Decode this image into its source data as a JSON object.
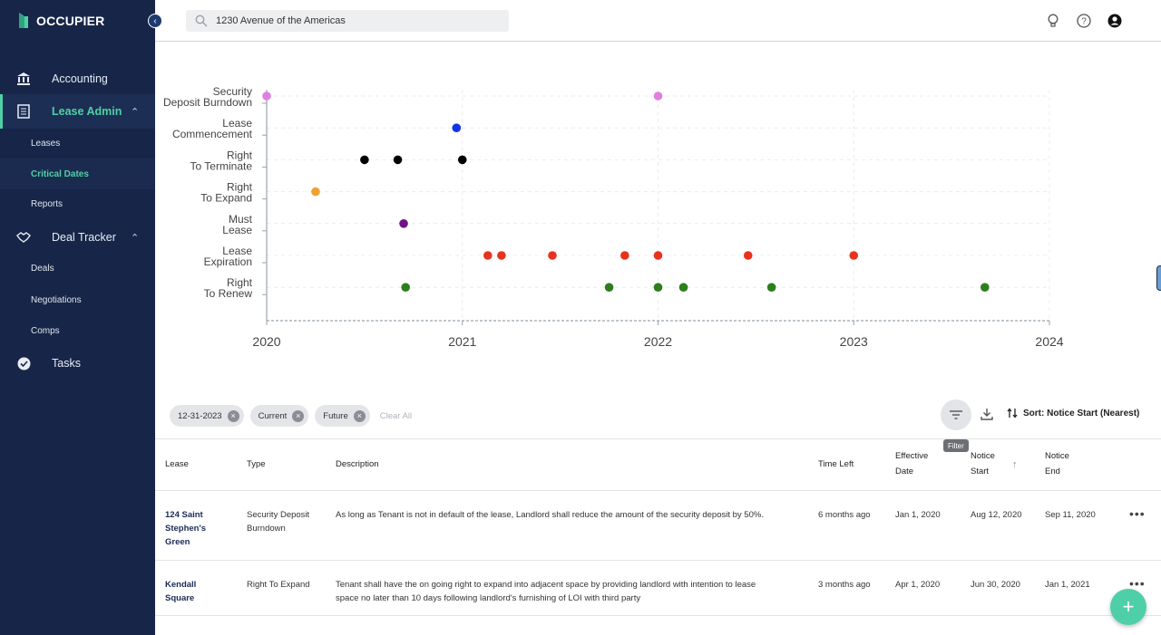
{
  "app": {
    "name": "OCCUPIER"
  },
  "sidebar": {
    "items": [
      {
        "label": "Accounting",
        "icon": "bank-icon"
      },
      {
        "label": "Lease Admin",
        "icon": "document-icon",
        "expanded": true
      },
      {
        "label": "Deal Tracker",
        "icon": "handshake-icon",
        "expanded": true
      },
      {
        "label": "Tasks",
        "icon": "check-circle-icon"
      }
    ],
    "lease_admin_sub": [
      "Leases",
      "Critical Dates",
      "Reports"
    ],
    "deal_tracker_sub": [
      "Deals",
      "Negotiations",
      "Comps"
    ],
    "active_sub": "Critical Dates"
  },
  "header": {
    "search_value": "1230 Avenue of the Americas",
    "icons": [
      "lightbulb-icon",
      "help-icon",
      "account-icon"
    ]
  },
  "chart_data": {
    "type": "scatter",
    "x_axis": {
      "ticks": [
        "2020",
        "2021",
        "2022",
        "2023",
        "2024"
      ],
      "range": [
        2020,
        2024
      ]
    },
    "categories": [
      {
        "label": [
          "Security",
          "Deposit Burndown"
        ],
        "color": "#e07fe0"
      },
      {
        "label": [
          "Lease",
          "Commencement"
        ],
        "color": "#1433e6"
      },
      {
        "label": [
          "Right",
          "To Terminate"
        ],
        "color": "#000000"
      },
      {
        "label": [
          "Right",
          "To Expand"
        ],
        "color": "#f0a030"
      },
      {
        "label": [
          "Must",
          "Lease"
        ],
        "color": "#6e1487"
      },
      {
        "label": [
          "Lease",
          "Expiration"
        ],
        "color": "#e8321e"
      },
      {
        "label": [
          "Right",
          "To Renew"
        ],
        "color": "#2e7d1e"
      }
    ],
    "points": [
      {
        "cat": 0,
        "x": 2020.0
      },
      {
        "cat": 0,
        "x": 2022.0
      },
      {
        "cat": 1,
        "x": 2020.97
      },
      {
        "cat": 2,
        "x": 2020.5
      },
      {
        "cat": 2,
        "x": 2020.67
      },
      {
        "cat": 2,
        "x": 2021.0
      },
      {
        "cat": 3,
        "x": 2020.25
      },
      {
        "cat": 4,
        "x": 2020.7
      },
      {
        "cat": 5,
        "x": 2021.13
      },
      {
        "cat": 5,
        "x": 2021.2
      },
      {
        "cat": 5,
        "x": 2021.46
      },
      {
        "cat": 5,
        "x": 2021.83
      },
      {
        "cat": 5,
        "x": 2022.0
      },
      {
        "cat": 5,
        "x": 2022.46
      },
      {
        "cat": 5,
        "x": 2023.0
      },
      {
        "cat": 6,
        "x": 2020.71
      },
      {
        "cat": 6,
        "x": 2021.75
      },
      {
        "cat": 6,
        "x": 2022.0
      },
      {
        "cat": 6,
        "x": 2022.13
      },
      {
        "cat": 6,
        "x": 2022.58
      },
      {
        "cat": 6,
        "x": 2023.67
      }
    ],
    "grid": true
  },
  "filters": {
    "chips": [
      "12-31-2023",
      "Current",
      "Future"
    ],
    "clear_all": "Clear All",
    "filter_tooltip": "Filter",
    "sort_label": "Sort: Notice Start (Nearest)"
  },
  "table": {
    "headers": {
      "lease": "Lease",
      "type": "Type",
      "description": "Description",
      "time_left": "Time Left",
      "effective_1": "Effective",
      "effective_2": "Date",
      "notice_start_1": "Notice",
      "notice_start_2": "Start",
      "notice_end_1": "Notice",
      "notice_end_2": "End"
    },
    "rows": [
      {
        "lease": [
          "124 Saint",
          "Stephen's",
          "Green"
        ],
        "type": [
          "Security Deposit",
          "Burndown"
        ],
        "description": [
          "As long as Tenant is not in default of the lease, Landlord shall reduce the amount of the security deposit by 50%."
        ],
        "time_left": "6 months ago",
        "effective": "Jan 1, 2020",
        "notice_start": "Aug 12, 2020",
        "notice_end": "Sep 11, 2020"
      },
      {
        "lease": [
          "Kendall",
          "Square"
        ],
        "type": [
          "Right To Expand"
        ],
        "description": [
          "Tenant shall have the on going right to expand into adjacent space by providing landlord with intention to lease",
          "space no later than 10 days following landlord's furnishing of LOI with third party"
        ],
        "time_left": "3 months ago",
        "effective": "Apr 1, 2020",
        "notice_start": "Jun 30, 2020",
        "notice_end": "Jan 1, 2021"
      }
    ]
  }
}
